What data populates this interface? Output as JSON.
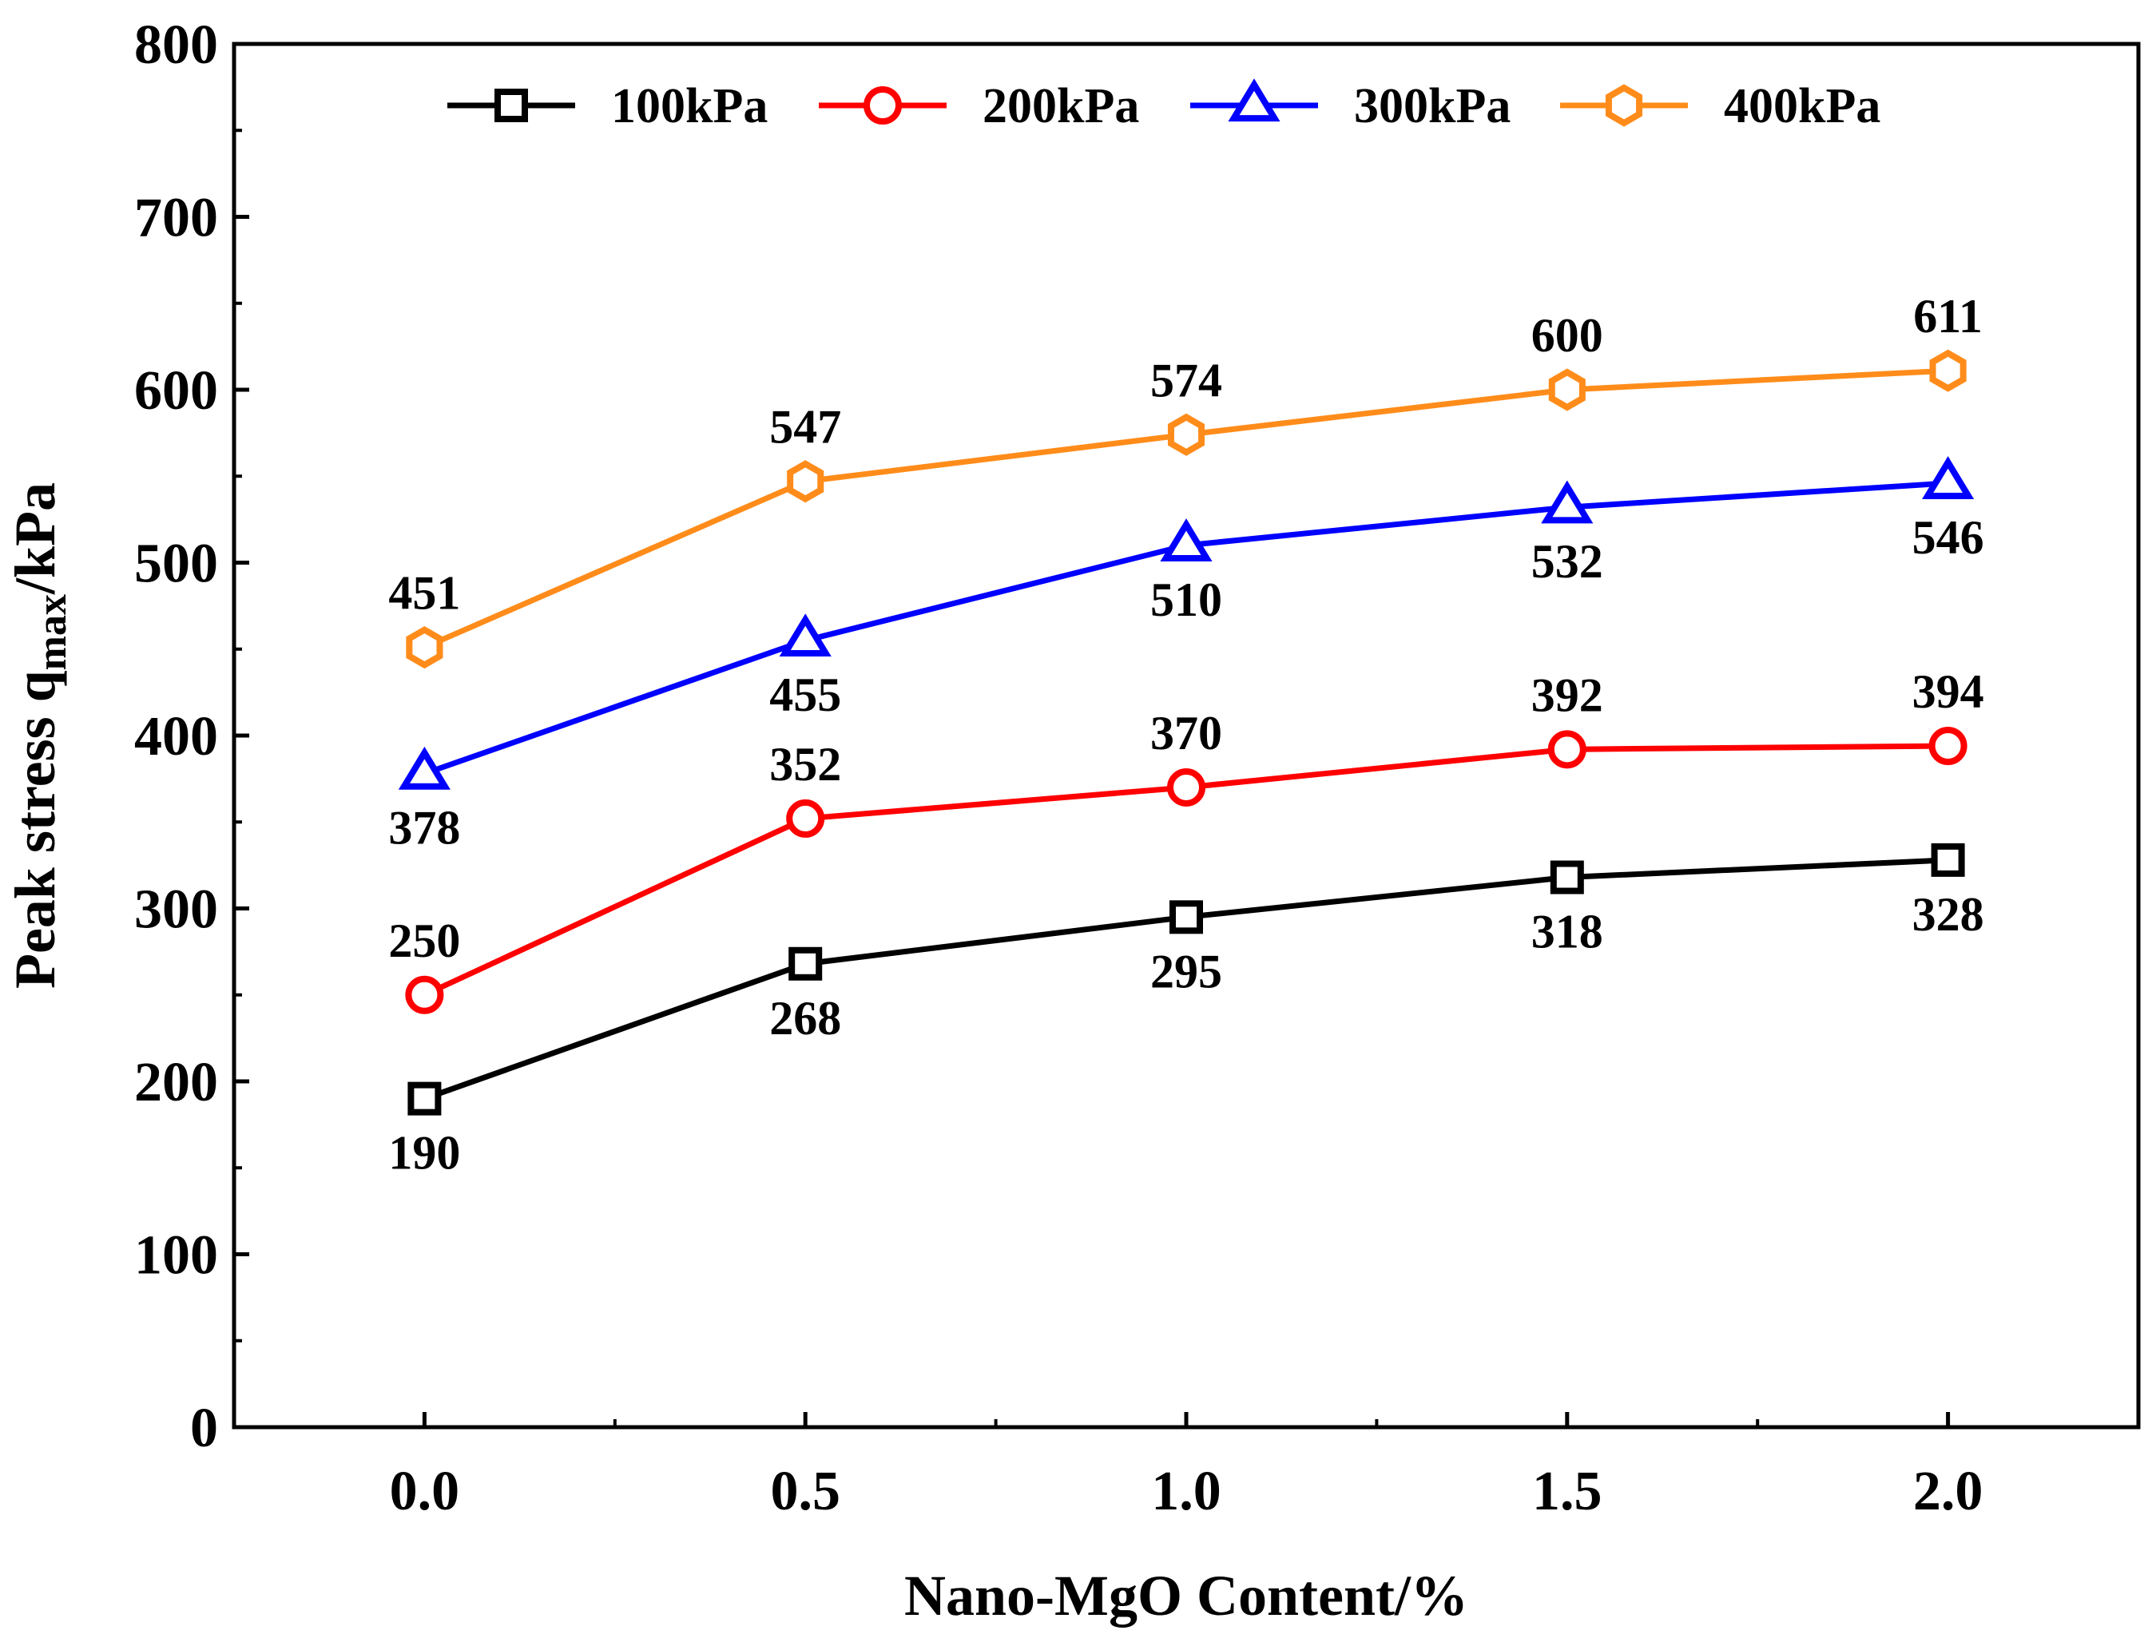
{
  "chart_data": {
    "type": "line",
    "title": "",
    "xlabel": "Nano-MgO Content/%",
    "ylabel": {
      "prefix": "Peak stress q",
      "subscript": "max",
      "suffix": "/kPa"
    },
    "x": [
      0.0,
      0.5,
      1.0,
      1.5,
      2.0
    ],
    "x_tick_labels": [
      "0.0",
      "0.5",
      "1.0",
      "1.5",
      "2.0"
    ],
    "xlim": [
      -0.25,
      2.25
    ],
    "ylim": [
      0,
      800
    ],
    "y_ticks": [
      0,
      100,
      200,
      300,
      400,
      500,
      600,
      700,
      800
    ],
    "y_tick_labels": [
      "0",
      "100",
      "200",
      "300",
      "400",
      "500",
      "600",
      "700",
      "800"
    ],
    "grid": false,
    "legend_position": "top",
    "series": [
      {
        "name": "100kPa",
        "color": "#000000",
        "marker": "square",
        "values": [
          190,
          268,
          295,
          318,
          328
        ],
        "label_placement": [
          "below",
          "below",
          "below",
          "below",
          "below"
        ]
      },
      {
        "name": "200kPa",
        "color": "#ff0000",
        "marker": "circle",
        "values": [
          250,
          352,
          370,
          392,
          394
        ],
        "label_placement": [
          "above",
          "above",
          "above",
          "above",
          "above"
        ]
      },
      {
        "name": "300kPa",
        "color": "#0000ff",
        "marker": "triangle",
        "values": [
          378,
          455,
          510,
          532,
          546
        ],
        "label_placement": [
          "below",
          "below",
          "below",
          "below",
          "below"
        ]
      },
      {
        "name": "400kPa",
        "color": "#ff8c1a",
        "marker": "hexagon",
        "values": [
          451,
          547,
          574,
          600,
          611
        ],
        "label_placement": [
          "above",
          "above",
          "above",
          "above",
          "above"
        ]
      }
    ]
  }
}
